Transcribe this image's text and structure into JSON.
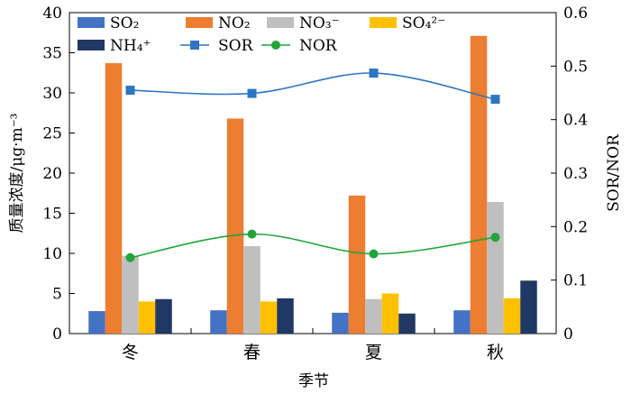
{
  "chart_data": {
    "type": "bar",
    "categories": [
      "冬",
      "春",
      "夏",
      "秋"
    ],
    "xlabel": "季节",
    "ylabel": "质量浓度/μg·m⁻³",
    "ylim": [
      0,
      40
    ],
    "y_ticks": [
      "0",
      "5",
      "10",
      "15",
      "20",
      "25",
      "30",
      "35",
      "40"
    ],
    "y2label": "SOR/NOR",
    "y2lim": [
      0,
      0.6
    ],
    "y2_ticks": [
      "0",
      "0.1",
      "0.2",
      "0.3",
      "0.4",
      "0.5",
      "0.6"
    ],
    "grid": false,
    "legend_position": "top",
    "bar_series": [
      {
        "name": "SO₂",
        "color": "#4472C4",
        "values": [
          2.8,
          2.9,
          2.6,
          2.9
        ]
      },
      {
        "name": "NO₂",
        "color": "#ED7D31",
        "values": [
          33.7,
          26.8,
          17.2,
          37.1
        ]
      },
      {
        "name": "NO₃⁻",
        "color": "#BFBFBF",
        "values": [
          9.7,
          10.9,
          4.3,
          16.4
        ]
      },
      {
        "name": "SO₄²⁻",
        "color": "#FFC000",
        "values": [
          4.0,
          4.0,
          5.0,
          4.4
        ]
      },
      {
        "name": "NH₄⁺",
        "color": "#203864",
        "values": [
          4.3,
          4.4,
          2.5,
          6.6
        ]
      }
    ],
    "line_series": [
      {
        "name": "SOR",
        "color": "#2E75C4",
        "marker": "square",
        "axis": "right",
        "values": [
          0.455,
          0.449,
          0.487,
          0.438
        ]
      },
      {
        "name": "NOR",
        "color": "#1FA538",
        "marker": "circle",
        "axis": "right",
        "values": [
          0.142,
          0.186,
          0.149,
          0.18
        ]
      }
    ]
  }
}
